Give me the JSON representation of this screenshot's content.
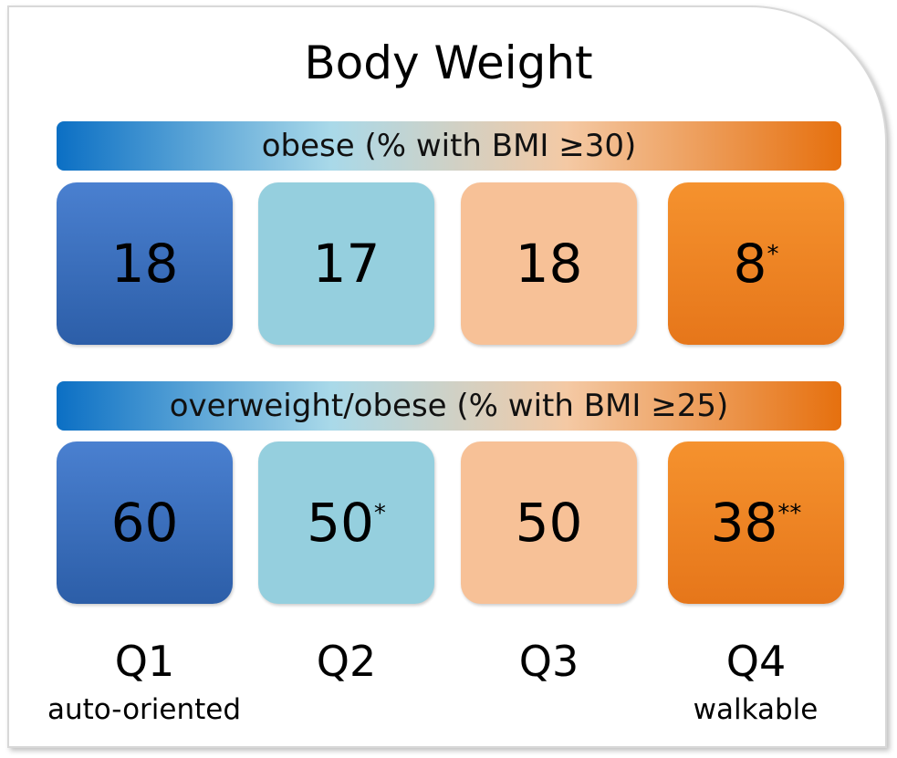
{
  "title": "Body Weight",
  "rows": [
    {
      "header": "obese (% with BMI ≥30)",
      "cells": [
        {
          "value": 18
        },
        {
          "value": 17
        },
        {
          "value": 18
        },
        {
          "value": 8,
          "note": "*"
        }
      ]
    },
    {
      "header": "overweight/obese (% with BMI ≥25)",
      "cells": [
        {
          "value": 60
        },
        {
          "value": 50,
          "note": "*"
        },
        {
          "value": 50
        },
        {
          "value": 38,
          "note": "**"
        }
      ]
    }
  ],
  "columns": [
    {
      "label": "Q1",
      "sublabel": "auto-oriented"
    },
    {
      "label": "Q2"
    },
    {
      "label": "Q3"
    },
    {
      "label": "Q4",
      "sublabel": "walkable"
    }
  ]
}
